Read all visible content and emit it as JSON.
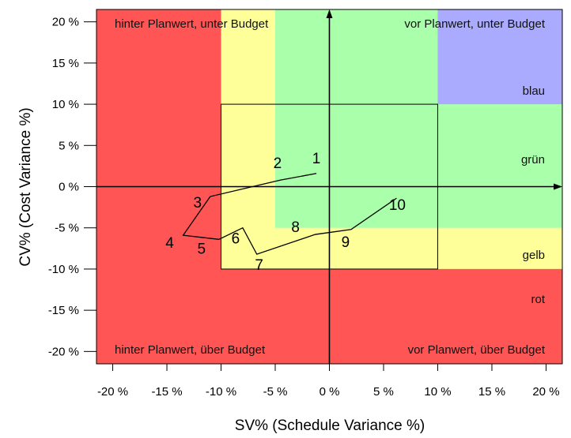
{
  "chart_data": {
    "type": "line",
    "xlabel": "SV% (Schedule Variance %)",
    "ylabel": "CV% (Cost Variance %)",
    "xlim": [
      -21.5,
      21.5
    ],
    "ylim": [
      -21.5,
      21.5
    ],
    "x_ticks": [
      -20,
      -15,
      -10,
      -5,
      0,
      5,
      10,
      15,
      20
    ],
    "y_ticks": [
      20,
      15,
      10,
      5,
      0,
      -5,
      -10,
      -15,
      -20
    ],
    "x_tick_labels": [
      "-20 %",
      "-15 %",
      "-10 %",
      "-5 %",
      "0 %",
      "5 %",
      "10 %",
      "15 %",
      "20 %"
    ],
    "y_tick_labels": [
      "20 %",
      "15 %",
      "10 %",
      "5 %",
      "0 %",
      "-5 %",
      "-10 %",
      "-15 %",
      "-20 %"
    ],
    "quadrant_labels": {
      "top_left": "hinter Planwert, unter Budget",
      "top_right": "vor Planwert, unter Budget",
      "bottom_left": "hinter Planwert, über Budget",
      "bottom_right": "vor Planwert, über Budget"
    },
    "zone_labels": [
      "blau",
      "grün",
      "gelb",
      "rot"
    ],
    "zone_colors": {
      "rot": "#ff5555",
      "gelb": "#ffff99",
      "gruen": "#aaffaa",
      "blau": "#aaaaff"
    },
    "trajectory": {
      "labels": [
        "1",
        "2",
        "3",
        "4",
        "5",
        "6",
        "7",
        "8",
        "9",
        "10"
      ],
      "x": [
        -1.2,
        -4.5,
        -11.0,
        -13.5,
        -10.2,
        -8.0,
        -6.7,
        -1.3,
        2.0,
        6.2
      ],
      "y": [
        1.6,
        0.8,
        -1.2,
        -5.9,
        -6.4,
        -5.0,
        -8.2,
        -5.8,
        -5.2,
        -1.4
      ],
      "color": "#000000"
    }
  }
}
